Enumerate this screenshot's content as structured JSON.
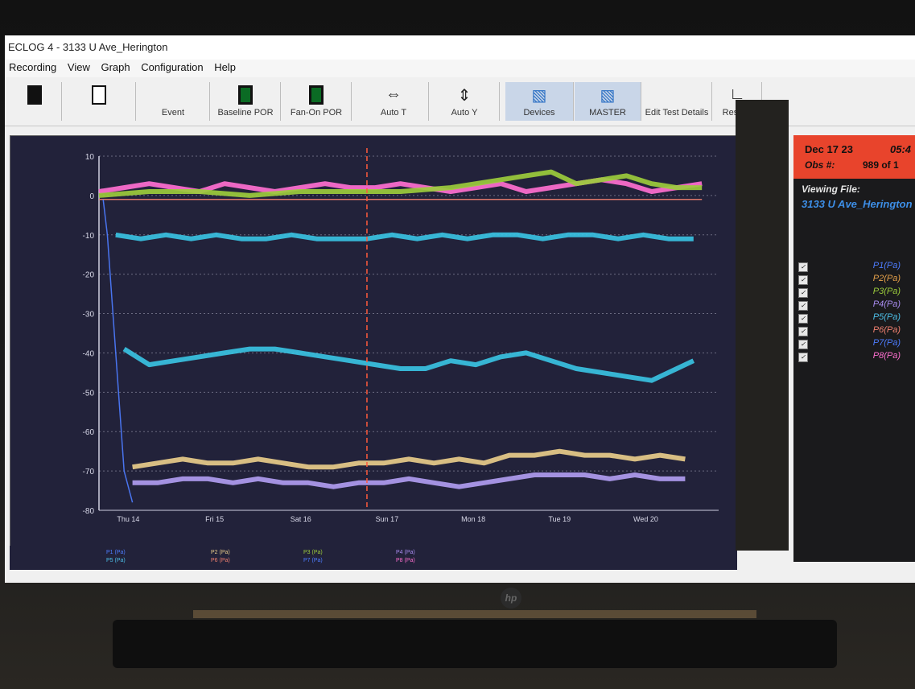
{
  "window": {
    "title": "ECLOG 4 - 3133 U Ave_Herington"
  },
  "menu": [
    "Recording",
    "View",
    "Graph",
    "Configuration",
    "Help"
  ],
  "toolbar": {
    "buttons": [
      "",
      "",
      "Event",
      "Baseline POR",
      "Fan-On POR",
      "Auto T",
      "Auto Y",
      "Devices",
      "MASTER",
      "Edit Test Details",
      "Results"
    ]
  },
  "side_panel": {
    "date": "Dec 17 23",
    "time": "05:4",
    "obs_label": "Obs #:",
    "obs_value": "989 of 1",
    "viewing_file_label": "Viewing File:",
    "file_name": "3133 U Ave_Herington",
    "channels": [
      {
        "name": "P1(Pa)",
        "color": "#4d7cff"
      },
      {
        "name": "P2(Pa)",
        "color": "#e6a14a"
      },
      {
        "name": "P3(Pa)",
        "color": "#9ccc3c"
      },
      {
        "name": "P4(Pa)",
        "color": "#a98cf0"
      },
      {
        "name": "P5(Pa)",
        "color": "#4dbfe8"
      },
      {
        "name": "P6(Pa)",
        "color": "#f08070"
      },
      {
        "name": "P7(Pa)",
        "color": "#4d7cff"
      },
      {
        "name": "P8(Pa)",
        "color": "#ff6fd0"
      }
    ]
  },
  "chart_data": {
    "type": "line",
    "ylim": [
      -80,
      10
    ],
    "y_ticks": [
      "10",
      "0",
      "-10",
      "-20",
      "-30",
      "-40",
      "-50",
      "-60",
      "-70",
      "-80"
    ],
    "x_ticks": [
      "Thu 14",
      "Fri 15",
      "Sat 16",
      "Sun 17",
      "Mon 18",
      "Tue 19",
      "Wed 20"
    ],
    "legend": [
      "P1 (Pa)",
      "P5 (Pa)",
      "P2 (Pa)",
      "P6 (Pa)",
      "P3 (Pa)",
      "P7 (Pa)",
      "P4 (Pa)",
      "P8 (Pa)"
    ],
    "cursor_x": 3.2,
    "series": [
      {
        "name": "P8 (Pa)",
        "color": "#ff6fd0",
        "x": [
          0,
          0.3,
          0.6,
          0.9,
          1.2,
          1.5,
          1.8,
          2.1,
          2.4,
          2.7,
          3.0,
          3.3,
          3.6,
          3.9,
          4.2,
          4.5,
          4.8,
          5.1,
          5.4,
          5.7,
          6.0,
          6.3,
          6.6,
          6.9,
          7.2
        ],
        "values": [
          1,
          2,
          3,
          2,
          1,
          3,
          2,
          1,
          2,
          3,
          2,
          2,
          3,
          2,
          1,
          2,
          3,
          1,
          2,
          3,
          4,
          3,
          1,
          2,
          3
        ]
      },
      {
        "name": "P3 (Pa)",
        "color": "#9ccc3c",
        "x": [
          0,
          0.6,
          1.2,
          1.8,
          2.4,
          3.0,
          3.6,
          4.2,
          4.8,
          5.1,
          5.4,
          5.7,
          6.0,
          6.3,
          6.6,
          6.9,
          7.2
        ],
        "values": [
          0,
          1,
          1,
          0,
          1,
          1,
          1,
          2,
          4,
          5,
          6,
          3,
          4,
          5,
          3,
          2,
          2
        ]
      },
      {
        "name": "P6 (Pa)",
        "color": "#f08070",
        "x": [
          0,
          1,
          2,
          3,
          4,
          5,
          6,
          7,
          7.2
        ],
        "values": [
          -1,
          -1,
          -1,
          -1,
          -1,
          -1,
          -1,
          -1,
          -1
        ]
      },
      {
        "name": "P1 (Pa)",
        "color": "#4d7cff",
        "x": [
          0.05,
          0.1,
          0.2,
          0.3,
          0.4
        ],
        "values": [
          -1,
          -10,
          -40,
          -70,
          -78
        ]
      },
      {
        "name": "P5 (Pa)",
        "color": "#3ac2e2",
        "x": [
          0.2,
          0.5,
          0.8,
          1.1,
          1.4,
          1.7,
          2.0,
          2.3,
          2.6,
          2.9,
          3.2,
          3.5,
          3.8,
          4.1,
          4.4,
          4.7,
          5.0,
          5.3,
          5.6,
          5.9,
          6.2,
          6.5,
          6.8,
          7.1
        ],
        "values": [
          -10,
          -11,
          -10,
          -11,
          -10,
          -11,
          -11,
          -10,
          -11,
          -11,
          -11,
          -10,
          -11,
          -10,
          -11,
          -10,
          -10,
          -11,
          -10,
          -10,
          -11,
          -10,
          -11,
          -11
        ]
      },
      {
        "name": "P4 (Pa)",
        "color": "#3ac2e2",
        "x": [
          0.3,
          0.6,
          0.9,
          1.2,
          1.5,
          1.8,
          2.1,
          2.4,
          2.7,
          3.0,
          3.3,
          3.6,
          3.9,
          4.2,
          4.5,
          4.8,
          5.1,
          5.4,
          5.7,
          6.0,
          6.3,
          6.6,
          6.9,
          7.1
        ],
        "values": [
          -39,
          -43,
          -42,
          -41,
          -40,
          -39,
          -39,
          -40,
          -41,
          -42,
          -43,
          -44,
          -44,
          -42,
          -43,
          -41,
          -40,
          -42,
          -44,
          -45,
          -46,
          -47,
          -44,
          -42
        ]
      },
      {
        "name": "P2 (Pa)",
        "color": "#e8cc8a",
        "x": [
          0.4,
          0.7,
          1.0,
          1.3,
          1.6,
          1.9,
          2.2,
          2.5,
          2.8,
          3.1,
          3.4,
          3.7,
          4.0,
          4.3,
          4.6,
          4.9,
          5.2,
          5.5,
          5.8,
          6.1,
          6.4,
          6.7,
          7.0
        ],
        "values": [
          -69,
          -68,
          -67,
          -68,
          -68,
          -67,
          -68,
          -69,
          -69,
          -68,
          -68,
          -67,
          -68,
          -67,
          -68,
          -66,
          -66,
          -65,
          -66,
          -66,
          -67,
          -66,
          -67
        ]
      },
      {
        "name": "P7 (Pa)",
        "color": "#b09cf0",
        "x": [
          0.4,
          0.7,
          1.0,
          1.3,
          1.6,
          1.9,
          2.2,
          2.5,
          2.8,
          3.1,
          3.4,
          3.7,
          4.0,
          4.3,
          4.6,
          4.9,
          5.2,
          5.5,
          5.8,
          6.1,
          6.4,
          6.7,
          7.0
        ],
        "values": [
          -73,
          -73,
          -72,
          -72,
          -73,
          -72,
          -73,
          -73,
          -74,
          -73,
          -73,
          -72,
          -73,
          -74,
          -73,
          -72,
          -71,
          -71,
          -71,
          -72,
          -71,
          -72,
          -72
        ]
      }
    ]
  }
}
